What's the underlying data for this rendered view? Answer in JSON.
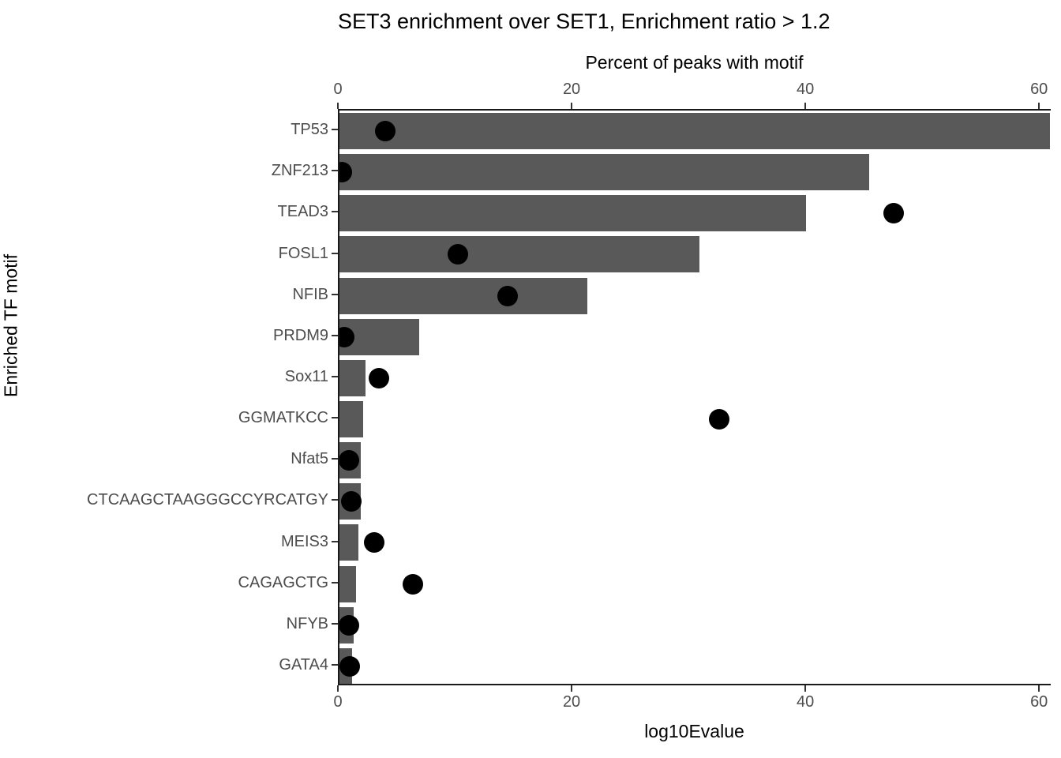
{
  "chart_data": {
    "type": "bar",
    "orientation": "horizontal",
    "title": "SET3 enrichment over SET1, Enrichment ratio > 1.2",
    "ylabel": "Enriched TF motif",
    "top_axis": {
      "label": "Percent of peaks with motif",
      "ticks": [
        0,
        20,
        40,
        60
      ],
      "range": [
        0,
        61
      ]
    },
    "bottom_axis": {
      "label": "log10Evalue",
      "ticks": [
        0,
        20,
        40,
        60
      ],
      "range": [
        0,
        61
      ]
    },
    "grid": false,
    "legend": "none",
    "categories": [
      "TP53",
      "ZNF213",
      "TEAD3",
      "FOSL1",
      "NFIB",
      "PRDM9",
      "Sox11",
      "GGMATKCC",
      "Nfat5",
      "CTCAAGCTAAGGGCCYRCATGY",
      "MEIS3",
      "CAGAGCTG",
      "NFYB",
      "GATA4"
    ],
    "series": [
      {
        "name": "Percent of peaks with motif",
        "mark": "bar",
        "values": [
          60.8,
          45.3,
          39.9,
          30.8,
          21.2,
          6.8,
          2.2,
          2.0,
          1.8,
          1.8,
          1.6,
          1.4,
          1.2,
          1.1
        ]
      },
      {
        "name": "log10Evalue",
        "mark": "point",
        "values": [
          3.9,
          0.2,
          47.4,
          10.1,
          14.4,
          0.4,
          3.4,
          32.5,
          0.8,
          1.0,
          3.0,
          6.3,
          0.8,
          0.9
        ]
      }
    ],
    "colors": {
      "bar": "#595959",
      "point": "#000000",
      "axis_text": "#4d4d4d",
      "axis_line": "#1a1a1a",
      "title": "#000000",
      "background": "#ffffff"
    }
  }
}
